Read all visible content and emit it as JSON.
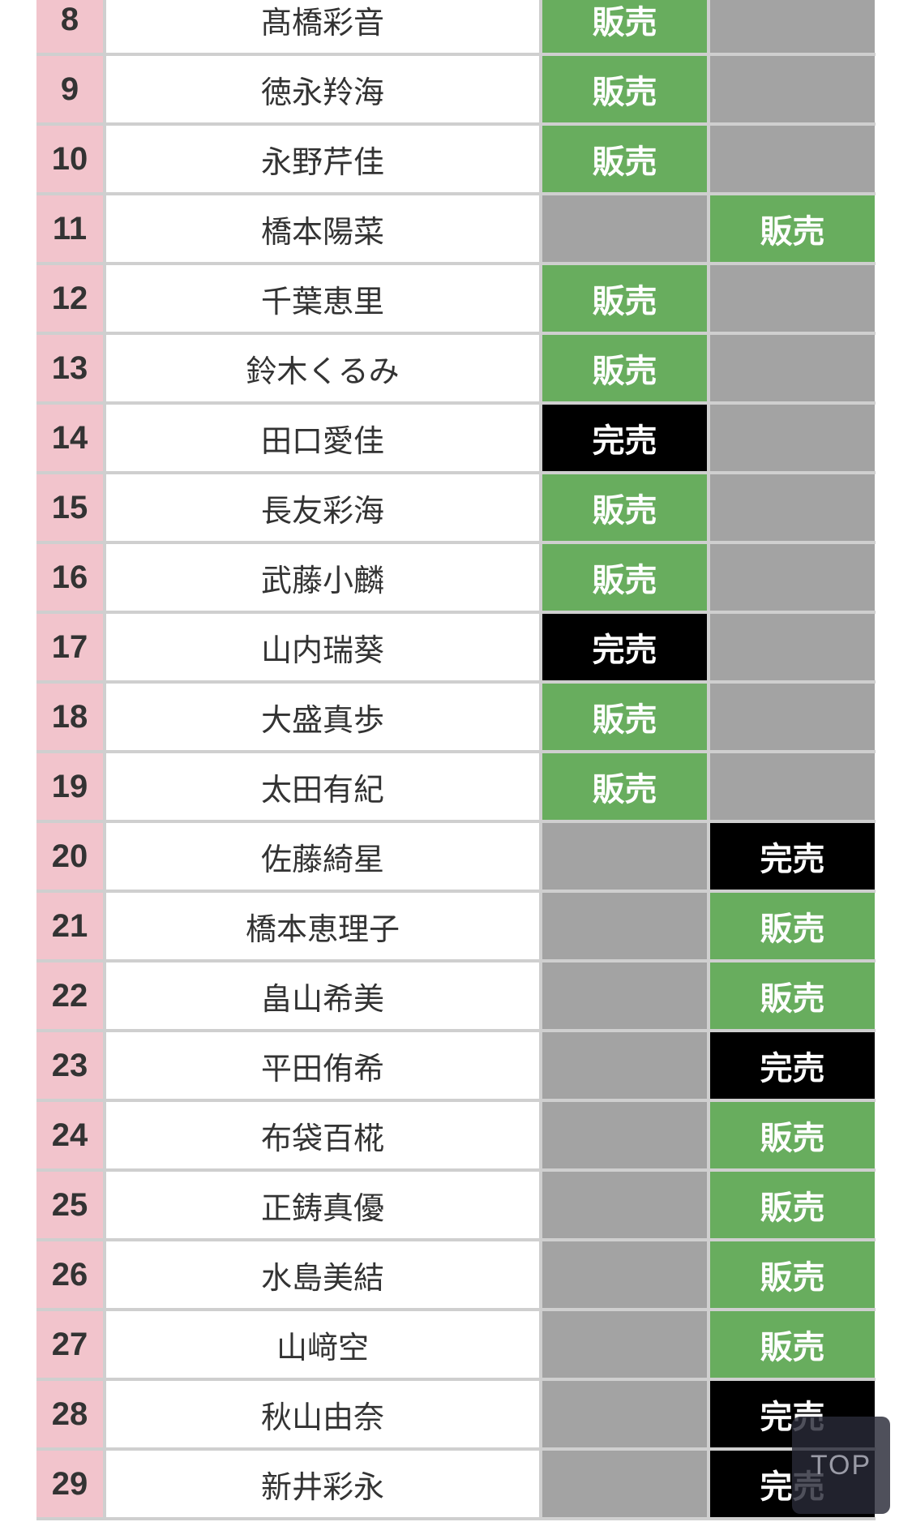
{
  "colors": {
    "sale": "#68ad5e",
    "sold_out": "#000000",
    "empty": "#a3a3a3",
    "number_bg": "#f2c4cc"
  },
  "rows": [
    {
      "no": "8",
      "name": "髙橋彩音",
      "col1": "販売",
      "col2": ""
    },
    {
      "no": "9",
      "name": "徳永羚海",
      "col1": "販売",
      "col2": ""
    },
    {
      "no": "10",
      "name": "永野芹佳",
      "col1": "販売",
      "col2": ""
    },
    {
      "no": "11",
      "name": "橋本陽菜",
      "col1": "",
      "col2": "販売"
    },
    {
      "no": "12",
      "name": "千葉恵里",
      "col1": "販売",
      "col2": ""
    },
    {
      "no": "13",
      "name": "鈴木くるみ",
      "col1": "販売",
      "col2": ""
    },
    {
      "no": "14",
      "name": "田口愛佳",
      "col1": "完売",
      "col2": ""
    },
    {
      "no": "15",
      "name": "長友彩海",
      "col1": "販売",
      "col2": ""
    },
    {
      "no": "16",
      "name": "武藤小麟",
      "col1": "販売",
      "col2": ""
    },
    {
      "no": "17",
      "name": "山内瑞葵",
      "col1": "完売",
      "col2": ""
    },
    {
      "no": "18",
      "name": "大盛真歩",
      "col1": "販売",
      "col2": ""
    },
    {
      "no": "19",
      "name": "太田有紀",
      "col1": "販売",
      "col2": ""
    },
    {
      "no": "20",
      "name": "佐藤綺星",
      "col1": "",
      "col2": "完売"
    },
    {
      "no": "21",
      "name": "橋本恵理子",
      "col1": "",
      "col2": "販売"
    },
    {
      "no": "22",
      "name": "畠山希美",
      "col1": "",
      "col2": "販売"
    },
    {
      "no": "23",
      "name": "平田侑希",
      "col1": "",
      "col2": "完売"
    },
    {
      "no": "24",
      "name": "布袋百椛",
      "col1": "",
      "col2": "販売"
    },
    {
      "no": "25",
      "name": "正鋳真優",
      "col1": "",
      "col2": "販売"
    },
    {
      "no": "26",
      "name": "水島美結",
      "col1": "",
      "col2": "販売"
    },
    {
      "no": "27",
      "name": "山﨑空",
      "col1": "",
      "col2": "販売"
    },
    {
      "no": "28",
      "name": "秋山由奈",
      "col1": "",
      "col2": "完売"
    },
    {
      "no": "29",
      "name": "新井彩永",
      "col1": "",
      "col2": "完売"
    }
  ],
  "top_button": {
    "label": "TOP"
  }
}
